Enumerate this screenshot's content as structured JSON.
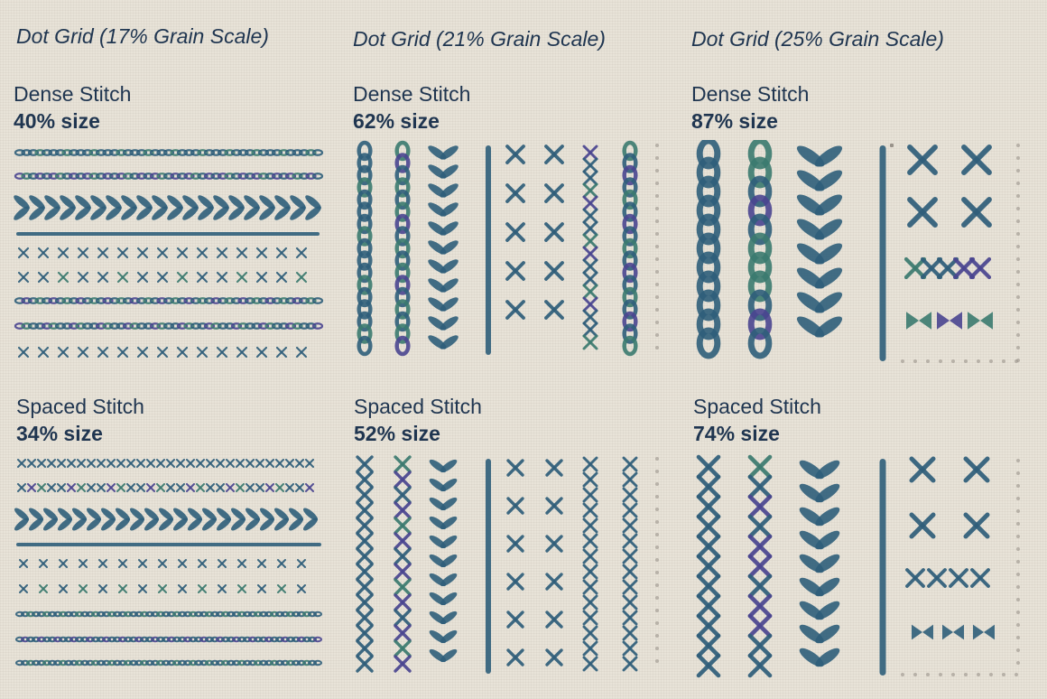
{
  "columns": [
    {
      "title": "Dot Grid (17% Grain Scale)",
      "dense": {
        "label": "Dense Stitch",
        "size": "40% size"
      },
      "spaced": {
        "label": "Spaced Stitch",
        "size": "34% size"
      }
    },
    {
      "title": "Dot Grid (21% Grain Scale)",
      "dense": {
        "label": "Dense Stitch",
        "size": "62% size"
      },
      "spaced": {
        "label": "Spaced Stitch",
        "size": "52% size"
      }
    },
    {
      "title": "Dot Grid (25% Grain Scale)",
      "dense": {
        "label": "Dense Stitch",
        "size": "87% size"
      },
      "spaced": {
        "label": "Spaced Stitch",
        "size": "74% size"
      }
    }
  ],
  "colors": {
    "ink": "#1f3550",
    "thread_blue": "#2f5e7a",
    "thread_teal": "#3b7a6f",
    "thread_purple": "#4a4590",
    "dot": "#9a938a"
  }
}
